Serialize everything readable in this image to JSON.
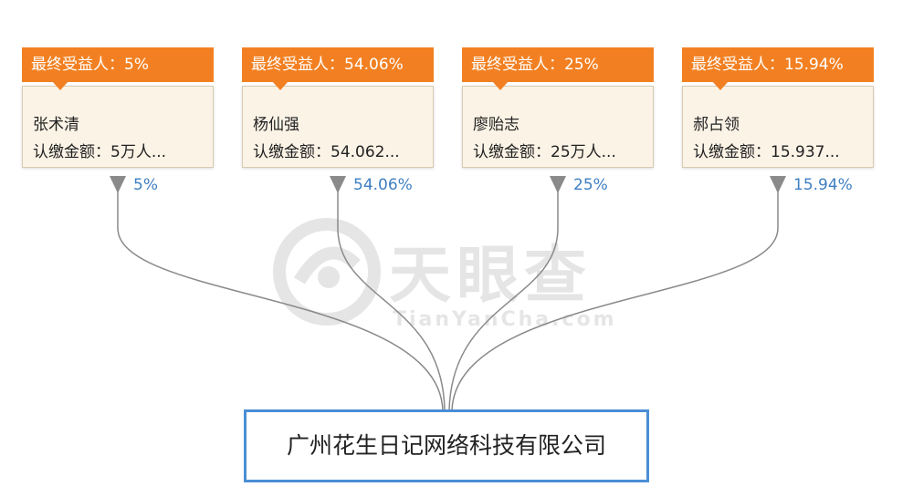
{
  "watermark": {
    "brand": "天眼查",
    "domain": "TianYanCha.com"
  },
  "shareholders": [
    {
      "tag": "最终受益人：5%",
      "name": "张术清",
      "amount": "认缴金额：5万人...",
      "percent": "5%"
    },
    {
      "tag": "最终受益人：54.06%",
      "name": "杨仙强",
      "amount": "认缴金额：54.062...",
      "percent": "54.06%"
    },
    {
      "tag": "最终受益人：25%",
      "name": "廖贻志",
      "amount": "认缴金额：25万人...",
      "percent": "25%"
    },
    {
      "tag": "最终受益人：15.94%",
      "name": "郝占领",
      "amount": "认缴金额：15.937...",
      "percent": "15.94%"
    }
  ],
  "company": {
    "name": "广州花生日记网络科技有限公司"
  },
  "colors": {
    "tag_bg": "#f28022",
    "card_bg": "#fbf3e6",
    "percent_text": "#3f7fc2",
    "company_border": "#4a8ed6",
    "connector": "#8a8a8a"
  }
}
